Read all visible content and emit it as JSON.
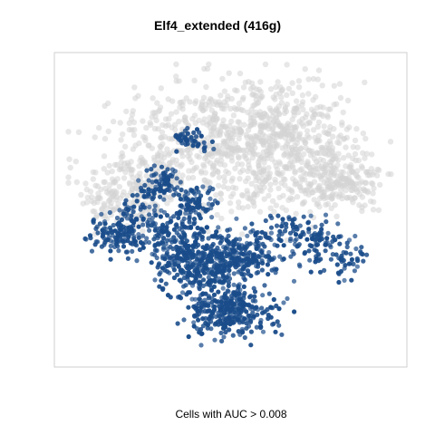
{
  "chart_data": {
    "type": "scatter",
    "title": "Elf4_extended (416g)",
    "xlabel": "Cells with AUC > 0.008",
    "ylabel": "",
    "axes_visible": false,
    "grid": false,
    "legend": "none",
    "series": [
      {
        "color": "#d3d3d3",
        "clusters": [
          {
            "cx": 0.47,
            "cy": 0.24,
            "sx": 0.13,
            "sy": 0.08,
            "n": 380
          },
          {
            "cx": 0.66,
            "cy": 0.21,
            "sx": 0.1,
            "sy": 0.08,
            "n": 260
          },
          {
            "cx": 0.77,
            "cy": 0.36,
            "sx": 0.07,
            "sy": 0.07,
            "n": 180
          },
          {
            "cx": 0.84,
            "cy": 0.42,
            "sx": 0.06,
            "sy": 0.04,
            "n": 120
          },
          {
            "cx": 0.26,
            "cy": 0.38,
            "sx": 0.1,
            "sy": 0.08,
            "n": 220
          },
          {
            "cx": 0.16,
            "cy": 0.47,
            "sx": 0.06,
            "sy": 0.05,
            "n": 100
          },
          {
            "cx": 0.58,
            "cy": 0.4,
            "sx": 0.1,
            "sy": 0.07,
            "n": 160
          }
        ]
      },
      {
        "color": "#1a4c8a",
        "clusters": [
          {
            "cx": 0.5,
            "cy": 0.84,
            "sx": 0.06,
            "sy": 0.04,
            "n": 300
          },
          {
            "cx": 0.42,
            "cy": 0.7,
            "sx": 0.07,
            "sy": 0.05,
            "n": 260
          },
          {
            "cx": 0.53,
            "cy": 0.65,
            "sx": 0.07,
            "sy": 0.04,
            "n": 220
          },
          {
            "cx": 0.34,
            "cy": 0.62,
            "sx": 0.05,
            "sy": 0.05,
            "n": 160
          },
          {
            "cx": 0.16,
            "cy": 0.59,
            "sx": 0.04,
            "sy": 0.03,
            "n": 110
          },
          {
            "cx": 0.39,
            "cy": 0.48,
            "sx": 0.03,
            "sy": 0.03,
            "n": 90
          },
          {
            "cx": 0.29,
            "cy": 0.41,
            "sx": 0.03,
            "sy": 0.03,
            "n": 70
          },
          {
            "cx": 0.38,
            "cy": 0.27,
            "sx": 0.03,
            "sy": 0.015,
            "n": 45
          },
          {
            "cx": 0.67,
            "cy": 0.57,
            "sx": 0.05,
            "sy": 0.03,
            "n": 60
          },
          {
            "cx": 0.76,
            "cy": 0.62,
            "sx": 0.03,
            "sy": 0.04,
            "n": 60
          },
          {
            "cx": 0.85,
            "cy": 0.66,
            "sx": 0.04,
            "sy": 0.03,
            "n": 45
          },
          {
            "cx": 0.23,
            "cy": 0.52,
            "sx": 0.05,
            "sy": 0.04,
            "n": 80
          }
        ]
      }
    ]
  }
}
